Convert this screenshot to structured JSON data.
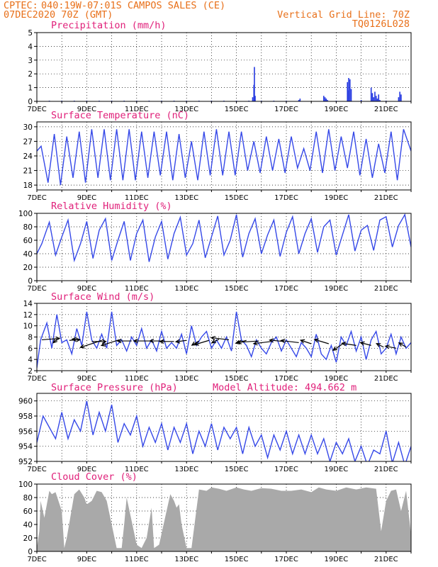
{
  "header": {
    "source": "CPTEC:",
    "location": "040:19W-07:01S  CAMPOS SALES (CE)",
    "init": "07DEC2020 70Z (GMT)",
    "grid_note": "Vertical Grid Line: 70Z",
    "product_code": "TQ0126L028"
  },
  "colors": {
    "line": "#3548e8",
    "precip_bar": "#2438e0",
    "cloud_bar": "#a9a9a9",
    "header": "#e8701a",
    "panel_title": "#e0207a",
    "wind_arrow": "#000000"
  },
  "chart_data": [
    {
      "id": "precip",
      "type": "bar",
      "title": "Precipitation (mm/h)",
      "x_tick_labels": [
        "7DEC",
        "9DEC",
        "11DEC",
        "13DEC",
        "15DEC",
        "17DEC",
        "19DEC",
        "21DEC"
      ],
      "x_range_days": [
        0,
        15
      ],
      "ylim": [
        0,
        5
      ],
      "y_ticks": [
        0,
        1,
        2,
        3,
        4,
        5
      ],
      "x_days": [
        0.0,
        0.5,
        1.0,
        1.5,
        2.0,
        2.5,
        3.0,
        3.5,
        4.0,
        4.5,
        5.0,
        5.5,
        6.0,
        6.5,
        7.0,
        7.5,
        8.0,
        8.5,
        8.65,
        8.7,
        8.72,
        8.75,
        9.0,
        9.5,
        10.0,
        10.5,
        10.55,
        11.5,
        11.55,
        11.6,
        11.65,
        12.0,
        12.45,
        12.48,
        12.5,
        12.55,
        12.6,
        13.0,
        13.4,
        13.45,
        13.5,
        13.55,
        13.6,
        13.65,
        13.7,
        13.75,
        14.0,
        14.5,
        14.55,
        14.6,
        15.0
      ],
      "values": [
        0.05,
        0.05,
        0.05,
        0.05,
        0.05,
        0.05,
        0.05,
        0.05,
        0.05,
        0.05,
        0.05,
        0.05,
        0.05,
        0.05,
        0.05,
        0.05,
        0.05,
        0.05,
        0.3,
        1.2,
        2.5,
        0.4,
        0.05,
        0.05,
        0.05,
        0.1,
        0.2,
        0.4,
        0.3,
        0.2,
        0.1,
        0.05,
        1.4,
        0.8,
        1.7,
        1.6,
        0.9,
        0.1,
        1.0,
        0.6,
        0.3,
        0.7,
        0.4,
        0.2,
        0.5,
        0.1,
        0.05,
        0.3,
        0.7,
        0.5,
        0.05
      ]
    },
    {
      "id": "temp",
      "type": "line",
      "title": "Surface Temperature (nC)",
      "x_tick_labels": [
        "7DEC",
        "9DEC",
        "11DEC",
        "13DEC",
        "15DEC",
        "17DEC",
        "19DEC",
        "21DEC"
      ],
      "x_range_days": [
        0,
        15
      ],
      "ylim": [
        17,
        31
      ],
      "y_ticks": [
        18,
        21,
        24,
        27,
        30
      ],
      "x_days": [
        0.0,
        0.17,
        0.45,
        0.7,
        0.95,
        1.2,
        1.45,
        1.7,
        1.95,
        2.2,
        2.45,
        2.7,
        2.95,
        3.2,
        3.45,
        3.7,
        3.95,
        4.2,
        4.45,
        4.7,
        4.95,
        5.2,
        5.45,
        5.7,
        5.95,
        6.2,
        6.45,
        6.7,
        6.95,
        7.2,
        7.45,
        7.7,
        7.95,
        8.2,
        8.45,
        8.7,
        8.95,
        9.2,
        9.45,
        9.7,
        9.95,
        10.2,
        10.45,
        10.7,
        10.95,
        11.2,
        11.45,
        11.7,
        11.95,
        12.2,
        12.45,
        12.7,
        12.95,
        13.2,
        13.45,
        13.7,
        13.95,
        14.2,
        14.45,
        14.7,
        15.0
      ],
      "y": [
        25.0,
        26.0,
        18.5,
        28.5,
        18.0,
        28.0,
        19.5,
        29.0,
        18.5,
        29.5,
        19.5,
        29.5,
        19.0,
        29.5,
        19.0,
        29.5,
        19.0,
        29.0,
        19.5,
        29.0,
        20.0,
        29.0,
        19.0,
        28.5,
        19.5,
        27.0,
        19.0,
        29.0,
        20.0,
        29.5,
        20.0,
        29.0,
        20.0,
        29.0,
        21.0,
        27.0,
        20.5,
        28.0,
        21.0,
        27.5,
        20.5,
        28.0,
        21.5,
        25.5,
        21.0,
        29.0,
        20.5,
        29.5,
        21.0,
        28.0,
        21.5,
        29.0,
        20.0,
        27.5,
        19.5,
        26.5,
        20.5,
        29.0,
        19.0,
        29.5,
        25.0
      ]
    },
    {
      "id": "rh",
      "type": "line",
      "title": "Relative Humidity (%)",
      "x_tick_labels": [
        "7DEC",
        "9DEC",
        "11DEC",
        "13DEC",
        "15DEC",
        "17DEC",
        "19DEC",
        "21DEC"
      ],
      "x_range_days": [
        0,
        15
      ],
      "ylim": [
        0,
        100
      ],
      "y_ticks": [
        0,
        20,
        40,
        60,
        80,
        100
      ],
      "x_days": [
        0.0,
        0.2,
        0.5,
        0.75,
        1.0,
        1.25,
        1.5,
        1.75,
        2.0,
        2.25,
        2.5,
        2.75,
        3.0,
        3.25,
        3.5,
        3.75,
        4.0,
        4.25,
        4.5,
        4.75,
        5.0,
        5.25,
        5.5,
        5.75,
        6.0,
        6.25,
        6.5,
        6.75,
        7.0,
        7.25,
        7.5,
        7.75,
        8.0,
        8.25,
        8.5,
        8.75,
        9.0,
        9.25,
        9.5,
        9.75,
        10.0,
        10.25,
        10.5,
        10.75,
        11.0,
        11.25,
        11.5,
        11.75,
        12.0,
        12.25,
        12.5,
        12.75,
        13.0,
        13.25,
        13.5,
        13.75,
        14.0,
        14.25,
        14.5,
        14.75,
        15.0
      ],
      "y": [
        40,
        55,
        87,
        38,
        65,
        90,
        30,
        55,
        88,
        33,
        75,
        92,
        30,
        60,
        88,
        30,
        70,
        90,
        28,
        65,
        88,
        32,
        70,
        94,
        38,
        55,
        90,
        34,
        65,
        96,
        38,
        60,
        98,
        35,
        70,
        92,
        40,
        68,
        90,
        36,
        72,
        95,
        40,
        70,
        92,
        42,
        80,
        90,
        38,
        68,
        98,
        44,
        75,
        82,
        45,
        90,
        95,
        50,
        82,
        98,
        50
      ]
    },
    {
      "id": "wind",
      "type": "line",
      "title": "Surface Wind (m/s)",
      "x_tick_labels": [
        "7DEC",
        "9DEC",
        "11DEC",
        "13DEC",
        "15DEC",
        "17DEC",
        "19DEC",
        "21DEC"
      ],
      "x_range_days": [
        0,
        15
      ],
      "ylim": [
        2,
        14
      ],
      "y_ticks": [
        2,
        4,
        6,
        8,
        10,
        12,
        14
      ],
      "x_days": [
        0.0,
        0.15,
        0.4,
        0.6,
        0.8,
        1.0,
        1.2,
        1.4,
        1.6,
        1.8,
        2.0,
        2.2,
        2.4,
        2.6,
        2.8,
        3.0,
        3.2,
        3.4,
        3.6,
        3.8,
        4.0,
        4.2,
        4.4,
        4.6,
        4.8,
        5.0,
        5.2,
        5.4,
        5.6,
        5.8,
        6.0,
        6.2,
        6.4,
        6.6,
        6.8,
        7.0,
        7.2,
        7.4,
        7.6,
        7.8,
        8.0,
        8.2,
        8.4,
        8.6,
        8.8,
        9.0,
        9.2,
        9.4,
        9.6,
        9.8,
        10.0,
        10.2,
        10.4,
        10.6,
        10.8,
        11.0,
        11.2,
        11.4,
        11.6,
        11.8,
        12.0,
        12.2,
        12.4,
        12.6,
        12.8,
        13.0,
        13.2,
        13.4,
        13.6,
        13.8,
        14.0,
        14.2,
        14.4,
        14.6,
        14.8,
        15.0
      ],
      "y": [
        2.5,
        7.5,
        10.5,
        6.0,
        12.0,
        7.0,
        7.5,
        5.0,
        9.5,
        6.5,
        12.5,
        7.5,
        6.0,
        8.5,
        6.0,
        12.5,
        6.5,
        7.5,
        5.5,
        8.0,
        6.5,
        9.5,
        6.0,
        7.5,
        5.5,
        9.0,
        6.0,
        7.0,
        6.0,
        8.5,
        5.0,
        10.0,
        6.5,
        8.0,
        9.0,
        6.0,
        7.5,
        6.0,
        8.0,
        5.5,
        12.5,
        7.5,
        6.5,
        4.5,
        7.5,
        6.0,
        5.0,
        7.0,
        8.0,
        5.5,
        7.5,
        6.0,
        4.5,
        7.0,
        6.0,
        4.5,
        8.5,
        5.0,
        4.0,
        6.5,
        3.5,
        8.0,
        6.5,
        9.0,
        5.5,
        8.0,
        4.0,
        7.5,
        9.0,
        5.0,
        6.0,
        8.5,
        5.0,
        8.0,
        6.0,
        7.0
      ],
      "arrows": [
        {
          "x_day": 0.2,
          "speed": 7.5,
          "u": 2.5,
          "v": 0.2
        },
        {
          "x_day": 0.8,
          "speed": 7.6,
          "u": -0.5,
          "v": -0.5
        },
        {
          "x_day": 1.3,
          "speed": 7.4,
          "u": 1.5,
          "v": 0.1
        },
        {
          "x_day": 1.7,
          "speed": 7.5,
          "u": -1.0,
          "v": 0.1
        },
        {
          "x_day": 2.2,
          "speed": 7.2,
          "u": 2.0,
          "v": 0.0
        },
        {
          "x_day": 2.6,
          "speed": 7.4,
          "u": -3.0,
          "v": -1.0
        },
        {
          "x_day": 3.3,
          "speed": 7.5,
          "u": -2.5,
          "v": -0.8
        },
        {
          "x_day": 3.8,
          "speed": 7.3,
          "u": -2.0,
          "v": 0.0
        },
        {
          "x_day": 4.6,
          "speed": 7.3,
          "u": -2.5,
          "v": 0.0
        },
        {
          "x_day": 5.1,
          "speed": 7.3,
          "u": -2.0,
          "v": 0.0
        },
        {
          "x_day": 5.5,
          "speed": 7.2,
          "u": -2.0,
          "v": 0.0
        },
        {
          "x_day": 6.0,
          "speed": 7.4,
          "u": -1.5,
          "v": -0.2
        },
        {
          "x_day": 6.5,
          "speed": 7.3,
          "u": -1.0,
          "v": -0.6
        },
        {
          "x_day": 6.9,
          "speed": 7.4,
          "u": -2.0,
          "v": -0.6
        },
        {
          "x_day": 7.3,
          "speed": 7.6,
          "u": -1.0,
          "v": -0.5
        },
        {
          "x_day": 7.7,
          "speed": 7.5,
          "u": -2.5,
          "v": 0.3
        },
        {
          "x_day": 8.4,
          "speed": 7.4,
          "u": -1.5,
          "v": -0.4
        },
        {
          "x_day": 8.9,
          "speed": 7.3,
          "u": -3.0,
          "v": -0.2
        },
        {
          "x_day": 9.4,
          "speed": 7.2,
          "u": -2.5,
          "v": -0.3
        },
        {
          "x_day": 9.9,
          "speed": 7.2,
          "u": -2.0,
          "v": 0.2
        },
        {
          "x_day": 10.5,
          "speed": 7.0,
          "u": -2.5,
          "v": 0.3
        },
        {
          "x_day": 11.0,
          "speed": 6.8,
          "u": -1.5,
          "v": 0.5
        },
        {
          "x_day": 11.7,
          "speed": 6.8,
          "u": -2.0,
          "v": 0.6
        },
        {
          "x_day": 12.3,
          "speed": 6.9,
          "u": -1.5,
          "v": -1.0
        },
        {
          "x_day": 12.8,
          "speed": 6.5,
          "u": -2.0,
          "v": 0.3
        },
        {
          "x_day": 13.4,
          "speed": 6.5,
          "u": -1.5,
          "v": 0.4
        },
        {
          "x_day": 13.9,
          "speed": 6.2,
          "u": -1.0,
          "v": 0.5
        },
        {
          "x_day": 14.4,
          "speed": 6.0,
          "u": -1.5,
          "v": 0.3
        },
        {
          "x_day": 14.8,
          "speed": 6.2,
          "u": -1.0,
          "v": 0.6
        }
      ]
    },
    {
      "id": "pressure",
      "type": "line",
      "title": "Surface Pressure (hPa)",
      "annotation": "Model Altitude: 494.662 m",
      "x_tick_labels": [
        "7DEC",
        "9DEC",
        "11DEC",
        "13DEC",
        "15DEC",
        "17DEC",
        "19DEC",
        "21DEC"
      ],
      "x_range_days": [
        0,
        15
      ],
      "ylim": [
        952,
        961
      ],
      "y_ticks": [
        952,
        954,
        956,
        958,
        960
      ],
      "x_days": [
        0.0,
        0.25,
        0.5,
        0.75,
        1.0,
        1.25,
        1.5,
        1.75,
        2.0,
        2.25,
        2.5,
        2.75,
        3.0,
        3.25,
        3.5,
        3.75,
        4.0,
        4.25,
        4.5,
        4.75,
        5.0,
        5.25,
        5.5,
        5.75,
        6.0,
        6.25,
        6.5,
        6.75,
        7.0,
        7.25,
        7.5,
        7.75,
        8.0,
        8.25,
        8.5,
        8.75,
        9.0,
        9.25,
        9.5,
        9.75,
        10.0,
        10.25,
        10.5,
        10.75,
        11.0,
        11.25,
        11.5,
        11.75,
        12.0,
        12.25,
        12.5,
        12.75,
        13.0,
        13.25,
        13.5,
        13.75,
        14.0,
        14.25,
        14.5,
        14.75,
        15.0
      ],
      "y": [
        954.5,
        958.0,
        956.5,
        955.0,
        958.5,
        955.0,
        957.5,
        956.0,
        960.0,
        955.5,
        958.5,
        956.0,
        959.5,
        954.5,
        957.0,
        955.5,
        958.0,
        954.0,
        956.5,
        954.5,
        957.0,
        953.5,
        956.5,
        954.5,
        957.0,
        953.0,
        956.0,
        954.0,
        957.0,
        953.5,
        956.5,
        955.0,
        956.5,
        953.0,
        956.5,
        954.0,
        955.5,
        952.5,
        955.5,
        953.5,
        956.0,
        953.0,
        955.5,
        953.0,
        955.5,
        953.0,
        955.0,
        952.0,
        954.5,
        953.0,
        955.0,
        952.0,
        954.0,
        951.5,
        953.5,
        953.0,
        956.0,
        951.8,
        954.5,
        951.5,
        954.0
      ]
    },
    {
      "id": "cloud",
      "type": "area",
      "title": "Cloud Cover (%)",
      "x_tick_labels": [
        "7DEC",
        "9DEC",
        "11DEC",
        "13DEC",
        "15DEC",
        "17DEC",
        "19DEC",
        "21DEC"
      ],
      "x_range_days": [
        0,
        15
      ],
      "ylim": [
        0,
        100
      ],
      "y_ticks": [
        0,
        20,
        40,
        60,
        80,
        100
      ],
      "x_days": [
        0.0,
        0.1,
        0.15,
        0.3,
        0.5,
        0.6,
        0.75,
        1.0,
        1.1,
        1.2,
        1.5,
        1.7,
        1.9,
        2.0,
        2.2,
        2.4,
        2.6,
        2.8,
        3.0,
        3.2,
        3.35,
        3.4,
        3.5,
        3.6,
        3.8,
        4.0,
        4.2,
        4.4,
        4.6,
        4.7,
        4.9,
        5.2,
        5.35,
        5.5,
        5.6,
        5.7,
        5.8,
        6.0,
        6.2,
        6.5,
        6.8,
        7.0,
        7.3,
        7.6,
        8.0,
        8.3,
        8.6,
        9.0,
        9.4,
        9.8,
        10.2,
        10.6,
        11.0,
        11.3,
        11.6,
        12.0,
        12.4,
        12.8,
        13.2,
        13.6,
        13.8,
        14.0,
        14.2,
        14.4,
        14.6,
        14.8,
        15.0
      ],
      "y": [
        5,
        30,
        75,
        50,
        90,
        85,
        88,
        60,
        5,
        20,
        85,
        92,
        80,
        70,
        75,
        90,
        88,
        75,
        40,
        5,
        5,
        5,
        40,
        80,
        45,
        10,
        5,
        20,
        65,
        5,
        10,
        60,
        85,
        75,
        65,
        70,
        40,
        5,
        5,
        92,
        90,
        95,
        93,
        90,
        95,
        92,
        90,
        94,
        93,
        90,
        90,
        92,
        88,
        95,
        92,
        90,
        95,
        92,
        95,
        93,
        30,
        75,
        90,
        92,
        60,
        90,
        25
      ]
    }
  ]
}
